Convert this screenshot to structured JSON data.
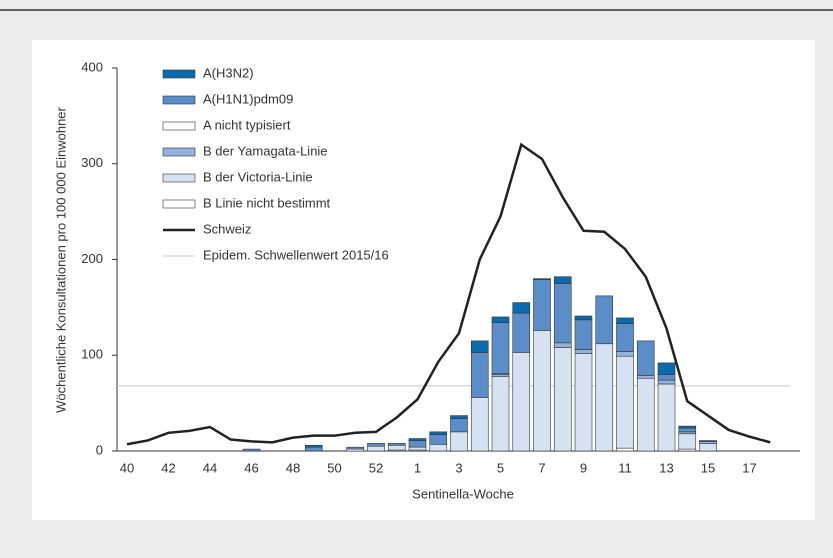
{
  "chart_data": {
    "type": "bar",
    "y_label": "Wöchentliche Konsultationen pro 100 000 Einwohner",
    "x_label": "Sentinella-Woche",
    "categories": [
      40,
      null,
      42,
      null,
      44,
      null,
      46,
      null,
      48,
      null,
      50,
      null,
      52,
      null,
      1,
      null,
      3,
      null,
      5,
      null,
      7,
      null,
      9,
      null,
      11,
      null,
      13,
      null,
      15,
      null,
      17,
      null
    ],
    "ylim": [
      0,
      400
    ],
    "yticks": [
      0,
      100,
      200,
      300,
      400
    ],
    "series": [
      {
        "name": "A(H3N2)",
        "color": "#0b69ad",
        "values": [
          0,
          0,
          0,
          0,
          0,
          0,
          0,
          0,
          0,
          2,
          0,
          0,
          0,
          0,
          2,
          3,
          3,
          12,
          6,
          11,
          1,
          7,
          4,
          0,
          6,
          0,
          12,
          2,
          0,
          0,
          0,
          0
        ]
      },
      {
        "name": "A(H1N1)pdm09",
        "color": "#5b8dc9",
        "values": [
          0,
          0,
          0,
          0,
          0,
          0,
          2,
          0,
          0,
          4,
          0,
          2,
          3,
          2,
          7,
          10,
          14,
          47,
          53,
          41,
          53,
          62,
          31,
          50,
          29,
          36,
          6,
          4,
          1,
          0,
          0,
          0
        ]
      },
      {
        "name": "A nicht typisiert",
        "color": "#ffffff",
        "values": [
          0,
          0,
          0,
          0,
          0,
          0,
          0,
          0,
          0,
          0,
          0,
          0,
          0,
          0,
          0,
          0,
          0,
          0,
          1,
          0,
          0,
          0,
          0,
          0,
          0,
          0,
          0,
          0,
          0,
          0,
          0,
          0
        ]
      },
      {
        "name": "B der Yamagata-Linie",
        "color": "#93b3de",
        "values": [
          0,
          0,
          0,
          0,
          0,
          0,
          0,
          0,
          0,
          0,
          0,
          0,
          0,
          0,
          0,
          0,
          0,
          0,
          2,
          0,
          0,
          5,
          4,
          0,
          5,
          3,
          4,
          2,
          2,
          0,
          0,
          0
        ]
      },
      {
        "name": "B der Victoria-Linie",
        "color": "#d6e2f2",
        "values": [
          0,
          0,
          0,
          0,
          0,
          0,
          0,
          0,
          0,
          0,
          0,
          0,
          5,
          5,
          3,
          7,
          20,
          56,
          78,
          103,
          126,
          108,
          102,
          112,
          96,
          76,
          70,
          16,
          8,
          0,
          0,
          0
        ]
      },
      {
        "name": "B Linie nicht bestimmt",
        "color": "#ffffff",
        "values": [
          0,
          0,
          0,
          0,
          0,
          0,
          0,
          0,
          0,
          0,
          0,
          2,
          0,
          1,
          1,
          0,
          0,
          0,
          0,
          0,
          0,
          0,
          0,
          0,
          3,
          0,
          0,
          2,
          0,
          0,
          0,
          0
        ]
      }
    ],
    "line": {
      "name": "Schweiz",
      "color": "#222222",
      "values": [
        7,
        11,
        19,
        21,
        25,
        12,
        10,
        9,
        14,
        16,
        16,
        19,
        20,
        35,
        54,
        93,
        123,
        200,
        245,
        320,
        305,
        265,
        230,
        229,
        211,
        182,
        128,
        52,
        37,
        22,
        15,
        9
      ]
    },
    "threshold": {
      "name": "Epidem. Schwellenwert 2015/16",
      "color": "#c8c8c8",
      "value": 68
    }
  }
}
